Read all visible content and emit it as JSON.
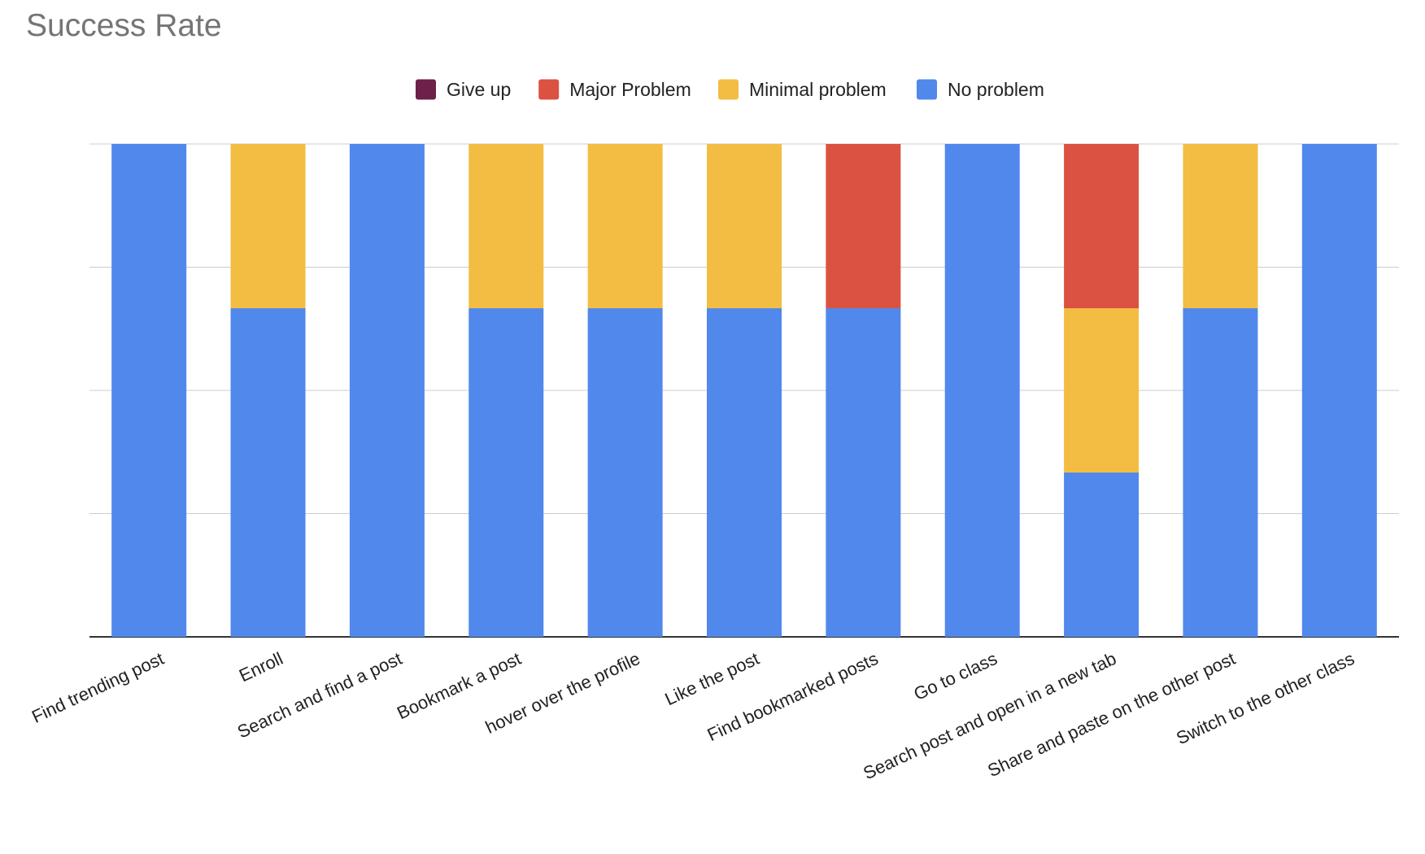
{
  "chart_data": {
    "type": "bar",
    "stacked": true,
    "title": "Success Rate",
    "xlabel": "",
    "ylabel": "",
    "ylim": [
      0,
      3
    ],
    "grid": true,
    "legend_position": "top-center",
    "categories": [
      "Find trending post",
      "Enroll",
      "Search and find a post",
      "Bookmark a post",
      "hover over the profile",
      "Like the post",
      "Find bookmarked posts",
      "Go to class",
      "Search post and open in a new tab",
      "Share and paste on the other post",
      "Switch to the other class"
    ],
    "series": [
      {
        "name": "Give up",
        "color": "#6e1f4a",
        "values": [
          0,
          0,
          0,
          0,
          0,
          0,
          0,
          0,
          0,
          0,
          0
        ]
      },
      {
        "name": "Major Problem",
        "color": "#dc5242",
        "values": [
          0,
          0,
          0,
          0,
          0,
          0,
          1,
          0,
          1,
          0,
          0
        ]
      },
      {
        "name": "Minimal problem",
        "color": "#f2bd42",
        "values": [
          0,
          1,
          0,
          1,
          1,
          1,
          0,
          0,
          1,
          1,
          0
        ]
      },
      {
        "name": "No problem",
        "color": "#5188ec",
        "values": [
          3,
          2,
          3,
          2,
          2,
          2,
          2,
          3,
          1,
          2,
          3
        ]
      }
    ]
  }
}
